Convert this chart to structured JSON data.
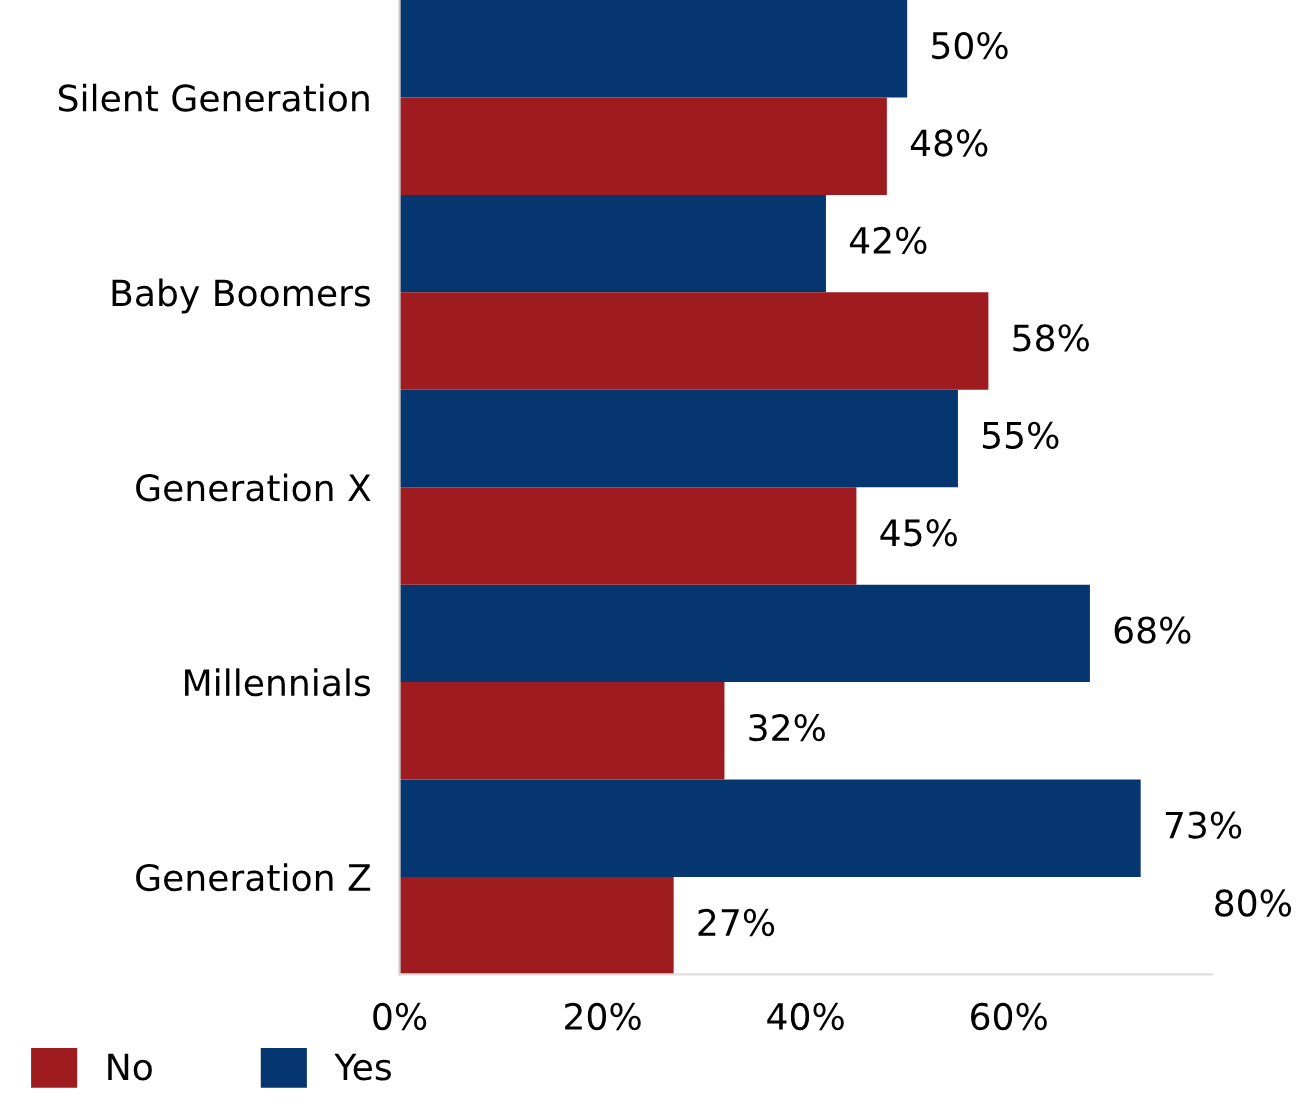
{
  "chart_data": {
    "type": "bar",
    "orientation": "horizontal",
    "categories": [
      "Silent Generation",
      "Baby Boomers",
      "Generation X",
      "Millennials",
      "Generation Z"
    ],
    "series": [
      {
        "name": "Yes",
        "color": "#063670",
        "values": [
          50,
          42,
          55,
          68,
          73
        ],
        "value_labels": [
          "50%",
          "42%",
          "55%",
          "68%",
          "73%"
        ]
      },
      {
        "name": "No",
        "color": "#9e1b20",
        "values": [
          48,
          58,
          45,
          32,
          27
        ],
        "value_labels": [
          "48%",
          "58%",
          "45%",
          "32%",
          "27%"
        ]
      }
    ],
    "xlim": [
      0,
      80
    ],
    "xticks": [
      {
        "value": 0,
        "label": "0%"
      },
      {
        "value": 20,
        "label": "20%"
      },
      {
        "value": 40,
        "label": "40%"
      },
      {
        "value": 60,
        "label": "60%"
      }
    ],
    "annotations": [
      "80%"
    ],
    "legend": "bottom left",
    "grid": false
  }
}
